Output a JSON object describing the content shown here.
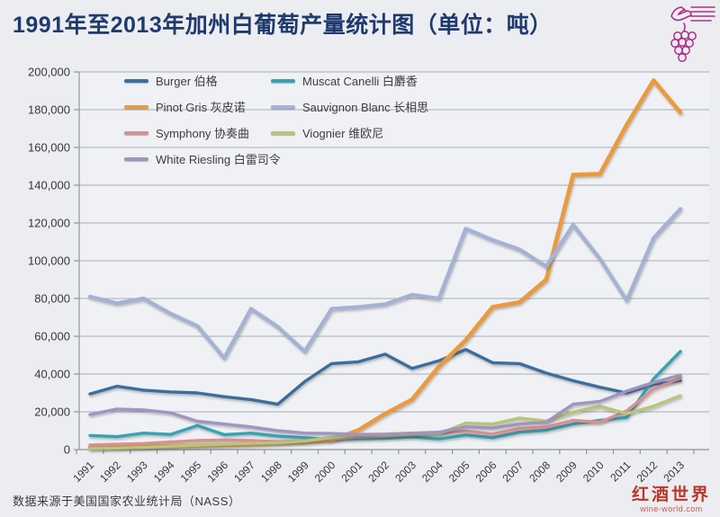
{
  "title": "1991年至2013年加州白葡萄产量统计图（单位：吨）",
  "source_note": "数据来源于美国国家农业统计局（NASS）",
  "logo": {
    "brand": "红酒世界",
    "domain": "wine-world.com"
  },
  "chart_data": {
    "type": "line",
    "title": "1991年至2013年加州白葡萄产量统计图（单位：吨）",
    "x": [
      1991,
      1992,
      1993,
      1994,
      1995,
      1996,
      1997,
      1998,
      1999,
      2000,
      2001,
      2002,
      2003,
      2004,
      2005,
      2006,
      2007,
      2008,
      2009,
      2010,
      2011,
      2012,
      2013
    ],
    "ylim": [
      0,
      200000
    ],
    "ytick_step": 20000,
    "grid": true,
    "legend_position": "top-left",
    "colors": {
      "grid": "#a9aeb4",
      "axis": "#8f959c",
      "tick_label": "#383838",
      "title": "#1e3a6e",
      "background": "#ecedf0"
    },
    "series": [
      {
        "name": "Burger",
        "name_zh": "伯格",
        "color": "#3d6d9e",
        "values": [
          29500,
          33500,
          31500,
          30500,
          30000,
          28000,
          26500,
          24000,
          36000,
          45500,
          46500,
          50500,
          43000,
          47000,
          53000,
          46000,
          45500,
          40500,
          36500,
          33000,
          30000,
          34500,
          36500
        ]
      },
      {
        "name": "Muscat Canelli",
        "name_zh": "白麝香",
        "color": "#35a3b2",
        "values": [
          7500,
          6800,
          8700,
          8000,
          12700,
          7900,
          8700,
          7100,
          6300,
          5300,
          5600,
          6000,
          6700,
          5600,
          7700,
          6300,
          9200,
          10300,
          13500,
          15500,
          17000,
          37500,
          52000
        ]
      },
      {
        "name": "Pinot Gris",
        "name_zh": "灰皮诺",
        "color": "#eb9a3d",
        "values": [
          1000,
          1200,
          1500,
          1800,
          2200,
          2500,
          2800,
          3500,
          4000,
          5000,
          10300,
          19000,
          26500,
          44000,
          58000,
          75500,
          78000,
          90000,
          145500,
          146000,
          172000,
          195500,
          178500
        ]
      },
      {
        "name": "Sauvignon Blanc",
        "name_zh": "长相思",
        "color": "#a4b2d4",
        "values": [
          81000,
          77500,
          80000,
          72000,
          65500,
          48500,
          74500,
          65000,
          52000,
          74500,
          75500,
          77000,
          82000,
          80000,
          117000,
          111000,
          106000,
          97000,
          119000,
          101000,
          79000,
          112000,
          127500
        ]
      },
      {
        "name": "Symphony",
        "name_zh": "协奏曲",
        "color": "#d89090",
        "values": [
          2400,
          2800,
          3200,
          4000,
          4800,
          5100,
          4800,
          4200,
          4800,
          5500,
          6700,
          7100,
          7900,
          8700,
          9800,
          8200,
          11100,
          11900,
          15500,
          14500,
          20500,
          32000,
          38000
        ]
      },
      {
        "name": "Viognier",
        "name_zh": "维欧尼",
        "color": "#b9c577",
        "values": [
          500,
          800,
          1200,
          1800,
          2400,
          2800,
          3300,
          3500,
          4500,
          6500,
          7800,
          7600,
          8200,
          8400,
          14000,
          13500,
          16700,
          15100,
          19800,
          23000,
          19000,
          23000,
          28500
        ]
      },
      {
        "name": "White Riesling",
        "name_zh": "白雷司令",
        "color": "#a095bf",
        "values": [
          18500,
          21500,
          21000,
          19500,
          15000,
          13500,
          12000,
          10000,
          8700,
          8500,
          8000,
          8200,
          8700,
          9200,
          12000,
          11500,
          13500,
          14500,
          24000,
          25500,
          31000,
          35500,
          39500
        ]
      }
    ]
  }
}
